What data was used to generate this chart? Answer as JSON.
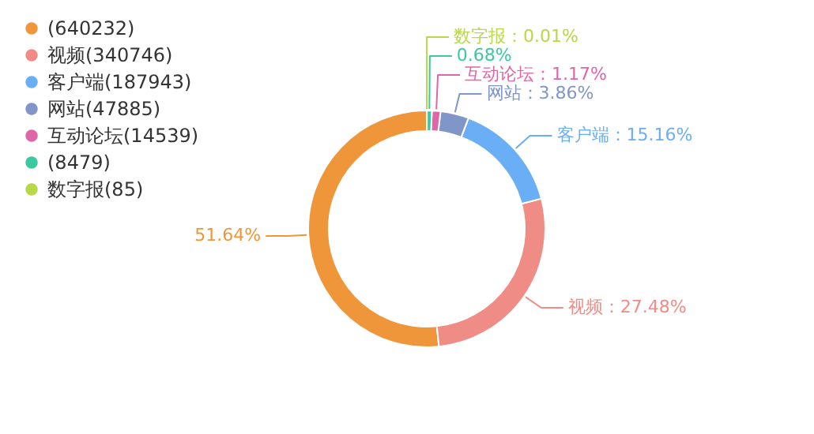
{
  "chart_data": {
    "type": "donut",
    "categories": [
      "(640232)",
      "视频(340746)",
      "客户端(187943)",
      "网站(47885)",
      "互动论坛(14539)",
      "(8479)",
      "数字报(85)"
    ],
    "values": [
      51.64,
      27.48,
      15.16,
      3.86,
      1.17,
      0.68,
      0.01
    ],
    "colors": [
      "#f0963a",
      "#f08c86",
      "#6aaef5",
      "#8096c8",
      "#e066a8",
      "#3cc8a0",
      "#b8d84a"
    ],
    "value_labels": [
      "51.64%",
      "视频：27.48%",
      "客户端：15.16%",
      "网站：3.86%",
      "互动论坛：1.17%",
      "0.68%",
      "数字报：0.01%"
    ],
    "legend": "top left"
  }
}
